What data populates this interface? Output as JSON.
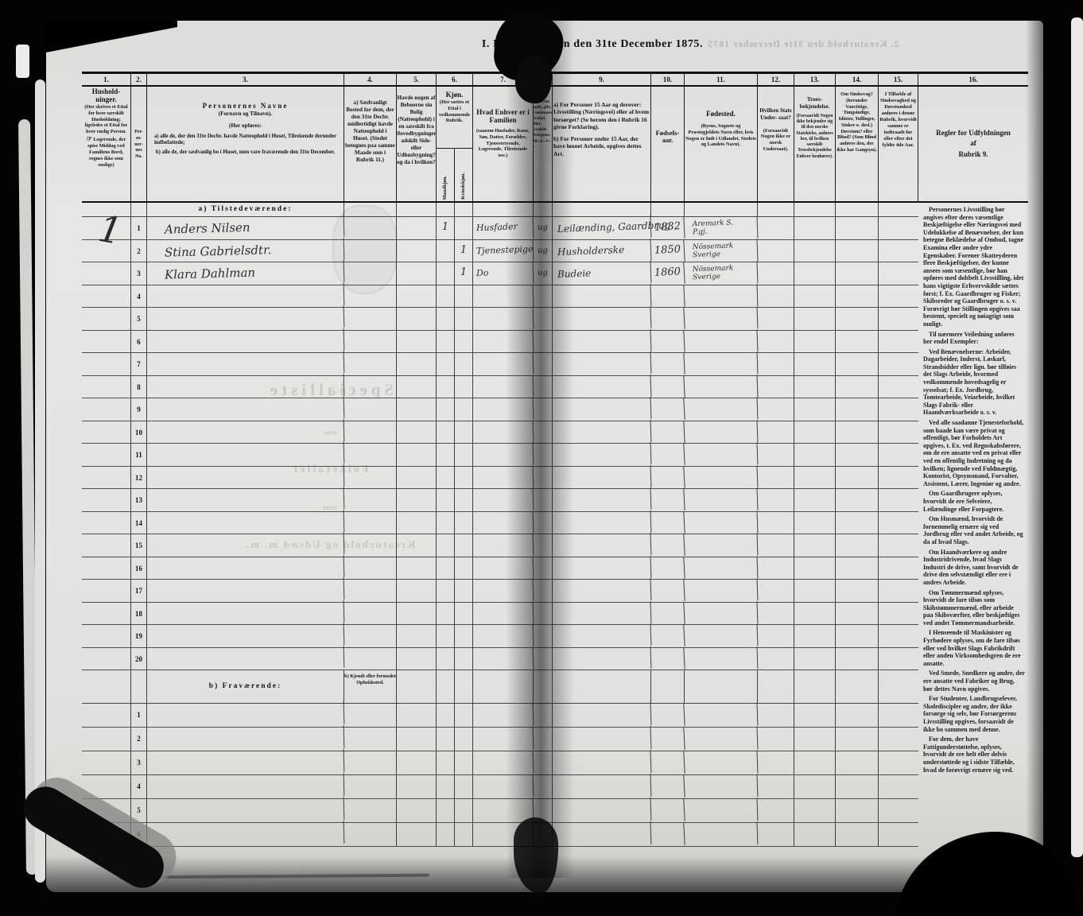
{
  "page": {
    "title": "I. Folketællingen den 31te December 1875.",
    "showthrough_top": "2. Kreaturhold den 31te December 1875",
    "showthrough_middle": [
      "Specialliste",
      "over",
      "Folketallet",
      "samt",
      "Kreaturhold og Udsæd m. m."
    ]
  },
  "table": {
    "household_mark": "1",
    "section_a_label": "a) Tilstedeværende:",
    "section_b_label": "b) Fraværende:",
    "section_b_note": "b) Kjendt eller formodet Opholdssted.",
    "col1": {
      "num": "1.",
      "title": "Hushold- ninger.",
      "body": "(Her skrives et Ettal for hver særskilt Husholdning; ligeledes et Ettal for hver enslig Person.",
      "manicule": "☞",
      "note": "Logerende, der spise Middag ved Familiens Bord, regnes ikke som enslige)"
    },
    "col2": {
      "num": "2.",
      "label": "Per- so- ner- nes No."
    },
    "col3": {
      "num": "3.",
      "title": "Personernes Navne",
      "title_sub": "(Fornavn og Tilnavn).",
      "sub": "(Her opføres:",
      "a": "a) alle de, der den 31te Decbr. havde Natteophold i Huset, Tilreisende derunder indbefattede;",
      "b": "b) alle de, der sædvanlig bo i Huset, men vare fraværende den 31te December."
    },
    "col4": {
      "num": "4.",
      "text": "a) Sædvanligt Bosted for dem, der den 31te Decbr. midlertidigt havde Natteophold i Huset. (Stedet betegnes paa samme Maade som i Rubrik 11.)"
    },
    "col5": {
      "num": "5.",
      "text": "Havde nogen af Beboerne sin Bolig (Natteophold) i en særskilt fra Hovedbygningen adskilt Side- eller Udhusbygning? og da i hvilken?"
    },
    "col6": {
      "num": "6.",
      "title": "Kjøn.",
      "sub": "(Her sættes et Ettal i vedkommende Rubrik.",
      "male": "Mandkjøn.",
      "female": "Kvindekjøn."
    },
    "col7": {
      "num": "7.",
      "title": "Hvad Enhver er i Familien",
      "sub": "(saasom Husfader, Kone, Søn, Datter, Forældre, Tjenestetyende, Logerende, Tilreisende osv.)"
    },
    "col8": {
      "num": "8.",
      "text": "For Pers. over 15 Aar: Om ugift, gift, Enkemand (Enke) eller fraskilt. Betegnes: ug., g., e., f."
    },
    "col9": {
      "num": "9.",
      "a": "a) For Personer 15 Aar og derover: Livsstilling (Næringsvei) eller af hvem forsørget? (Se herom den i Rubrik 16 givne Forklaring).",
      "b": "b) For Personer under 15 Aar, der have lønnet Arbeide, opgives dettes Art."
    },
    "col10": {
      "num": "10.",
      "text": "Fødsels- aar."
    },
    "col11": {
      "num": "11.",
      "title": "Fødested.",
      "sub": "(Byens, Sognets og Præstegjeldets Navn eller, hvis Nogen er født i Udlandet, Stedets og Landets Navn)."
    },
    "col12": {
      "num": "12.",
      "title": "Hvilken Stats Under- saat?",
      "sub": "(Forsaavidt Nogen ikke er norsk Undersaat)."
    },
    "col13": {
      "num": "13.",
      "title": "Troes- bekjendelse.",
      "sub": "(Forsaavidt Nogen ikke bekjender sig til den norske Statskirke, anføres her, til hvilken særskilt Troesbekjendelse Enhver henhører)."
    },
    "col14": {
      "num": "14.",
      "text": "Om Sindssvag? (herunder Vanvittige, Tungsindige, Idioter, Tullinger, Sinker o. desl.) Døvstum? eller Blind? (Som Blind anføres den, der ikke har Gangsyn)."
    },
    "col15": {
      "num": "15.",
      "text": "I Tilfælde af Sindssvaghed og Døvstumhed anføres i denne Rubrik, hvorvidt samme er indtraadt før eller efter det fyldte 4de Aar."
    },
    "col16": {
      "num": "16.",
      "h1": "Regler for Udfyldningen",
      "h2": "af",
      "h3": "Rubrik 9."
    },
    "rows_a": [
      {
        "no": "1",
        "name": "Anders Nilsen",
        "male": "1",
        "female": "",
        "family": "Husfader",
        "status": "ug",
        "occupation": "Leilænding, Gaardbrug",
        "year": "1832",
        "bp1": "Aremark S.",
        "bp2": "P.gj."
      },
      {
        "no": "2",
        "name": "Stina Gabrielsdtr.",
        "male": "",
        "female": "1",
        "family": "Tjenestepige",
        "status": "ug",
        "occupation": "Husholderske",
        "year": "1850",
        "bp1": "Nössemark",
        "bp2": "Sverige"
      },
      {
        "no": "3",
        "name": "Klara Dahlman",
        "male": "",
        "female": "1",
        "family": "Do",
        "status": "ug",
        "occupation": "Budeie",
        "year": "1860",
        "bp1": "Nössemark",
        "bp2": "Sverige"
      },
      {
        "no": "4"
      },
      {
        "no": "5"
      },
      {
        "no": "6"
      },
      {
        "no": "7"
      },
      {
        "no": "8"
      },
      {
        "no": "9"
      },
      {
        "no": "10"
      },
      {
        "no": "11"
      },
      {
        "no": "12"
      },
      {
        "no": "13"
      },
      {
        "no": "14"
      },
      {
        "no": "15"
      },
      {
        "no": "16"
      },
      {
        "no": "17"
      },
      {
        "no": "18"
      },
      {
        "no": "19"
      },
      {
        "no": "20"
      }
    ],
    "rows_b": [
      {
        "no": "1"
      },
      {
        "no": "2"
      },
      {
        "no": "3"
      },
      {
        "no": "4"
      },
      {
        "no": "5"
      },
      {
        "no": "6"
      }
    ]
  },
  "rules": {
    "paragraphs": [
      "Personernes Livsstilling bør angives efter deres væsentlige Beskjæftigelse eller Næringsvei med Udelukkelse af Benævnelser, der kun betegne Beklædelse af Ombud, tagne Examina eller andre ydre Egenskaber. Forener Skatteyderen flere Beskjæftigelser, der kunne ansees som væsentlige, bør han opføres med dobbelt Livsstilling, idet hans vigtigste Erhvervskilde sættes først; f. Ex. Gaardbruger og Fisker; Skibsreder og Gaardbruger o. s. v. Forøvrigt bør Stillingen opgives saa bestemt, specielt og nøiagtigt som muligt.",
      "Til nærmere Veiledning anføres her endel Exempler:",
      "Ved Benævnelserne: Arbeider, Dagarbeider, Inderst, Løskarl, Strandsidder eller lign. bør tilføies det Slags Arbeide, hvormed vedkommende hovedsagelig er sysselsat; f. Ex. Jordbrug, Tomtearbeide, Veiarbeide, hvilket Slags Fabrik- eller Haandværksarbeide o. s. v.",
      "Ved alle saadanne Tjenesteforhold, som baade kan være privat og offentligt, bør Forholdets Art opgives, t. Ex. ved Regnskabsførere, om de ere ansatte ved en privat eller ved en offentlig Indretning og da hvilken; lignende ved Fuldmægtig, Kontorist, Opsynsmand, Forvalter, Assistent, Lærer, Ingeniør og andre.",
      "Om Gaardbrugere oplyses, hvorvidt de ere Selveiere, Leilændinge eller Forpagtere.",
      "Om Husmænd, hvorvidt de fornemmelig ernære sig ved Jordbrug eller ved andet Arbeide, og da af hvad Slags.",
      "Om Haandværkere og andre Industridrivende, hvad Slags Industri de drive, samt hvorvidt de drive den selvstændigt eller ere i andres Arbeide.",
      "Om Tømmermænd oplyses, hvorvidt de fare tilsøs som Skibstømmermænd, eller arbeide paa Skibsværfter, eller beskjæftiges ved andet Tømmermandsarbeide.",
      "I Henseende til Maskinister og Fyrbødere oplyses, om de fare tilsøs eller ved hvilket Slags Fabrikdrift eller anden Virksomhedsgren de ere ansatte.",
      "Ved Smede, Snedkere og andre, der ere ansatte ved Fabriker og Brug, bør dettes Navn opgives.",
      "For Studenter, Landbrugselever, Skolediscipler og andre, der ikke forsørge sig selv, bør Forsørgerens Livsstilling opgives, forsaavidt de ikke bo sammen med denne.",
      "For dem, der have Fattigunderstøttelse, oplyses, hvorvidt de ere helt eller delvis understøttede og i sidste Tilfælde, hvad de forøvrigt ernære sig ved."
    ]
  }
}
